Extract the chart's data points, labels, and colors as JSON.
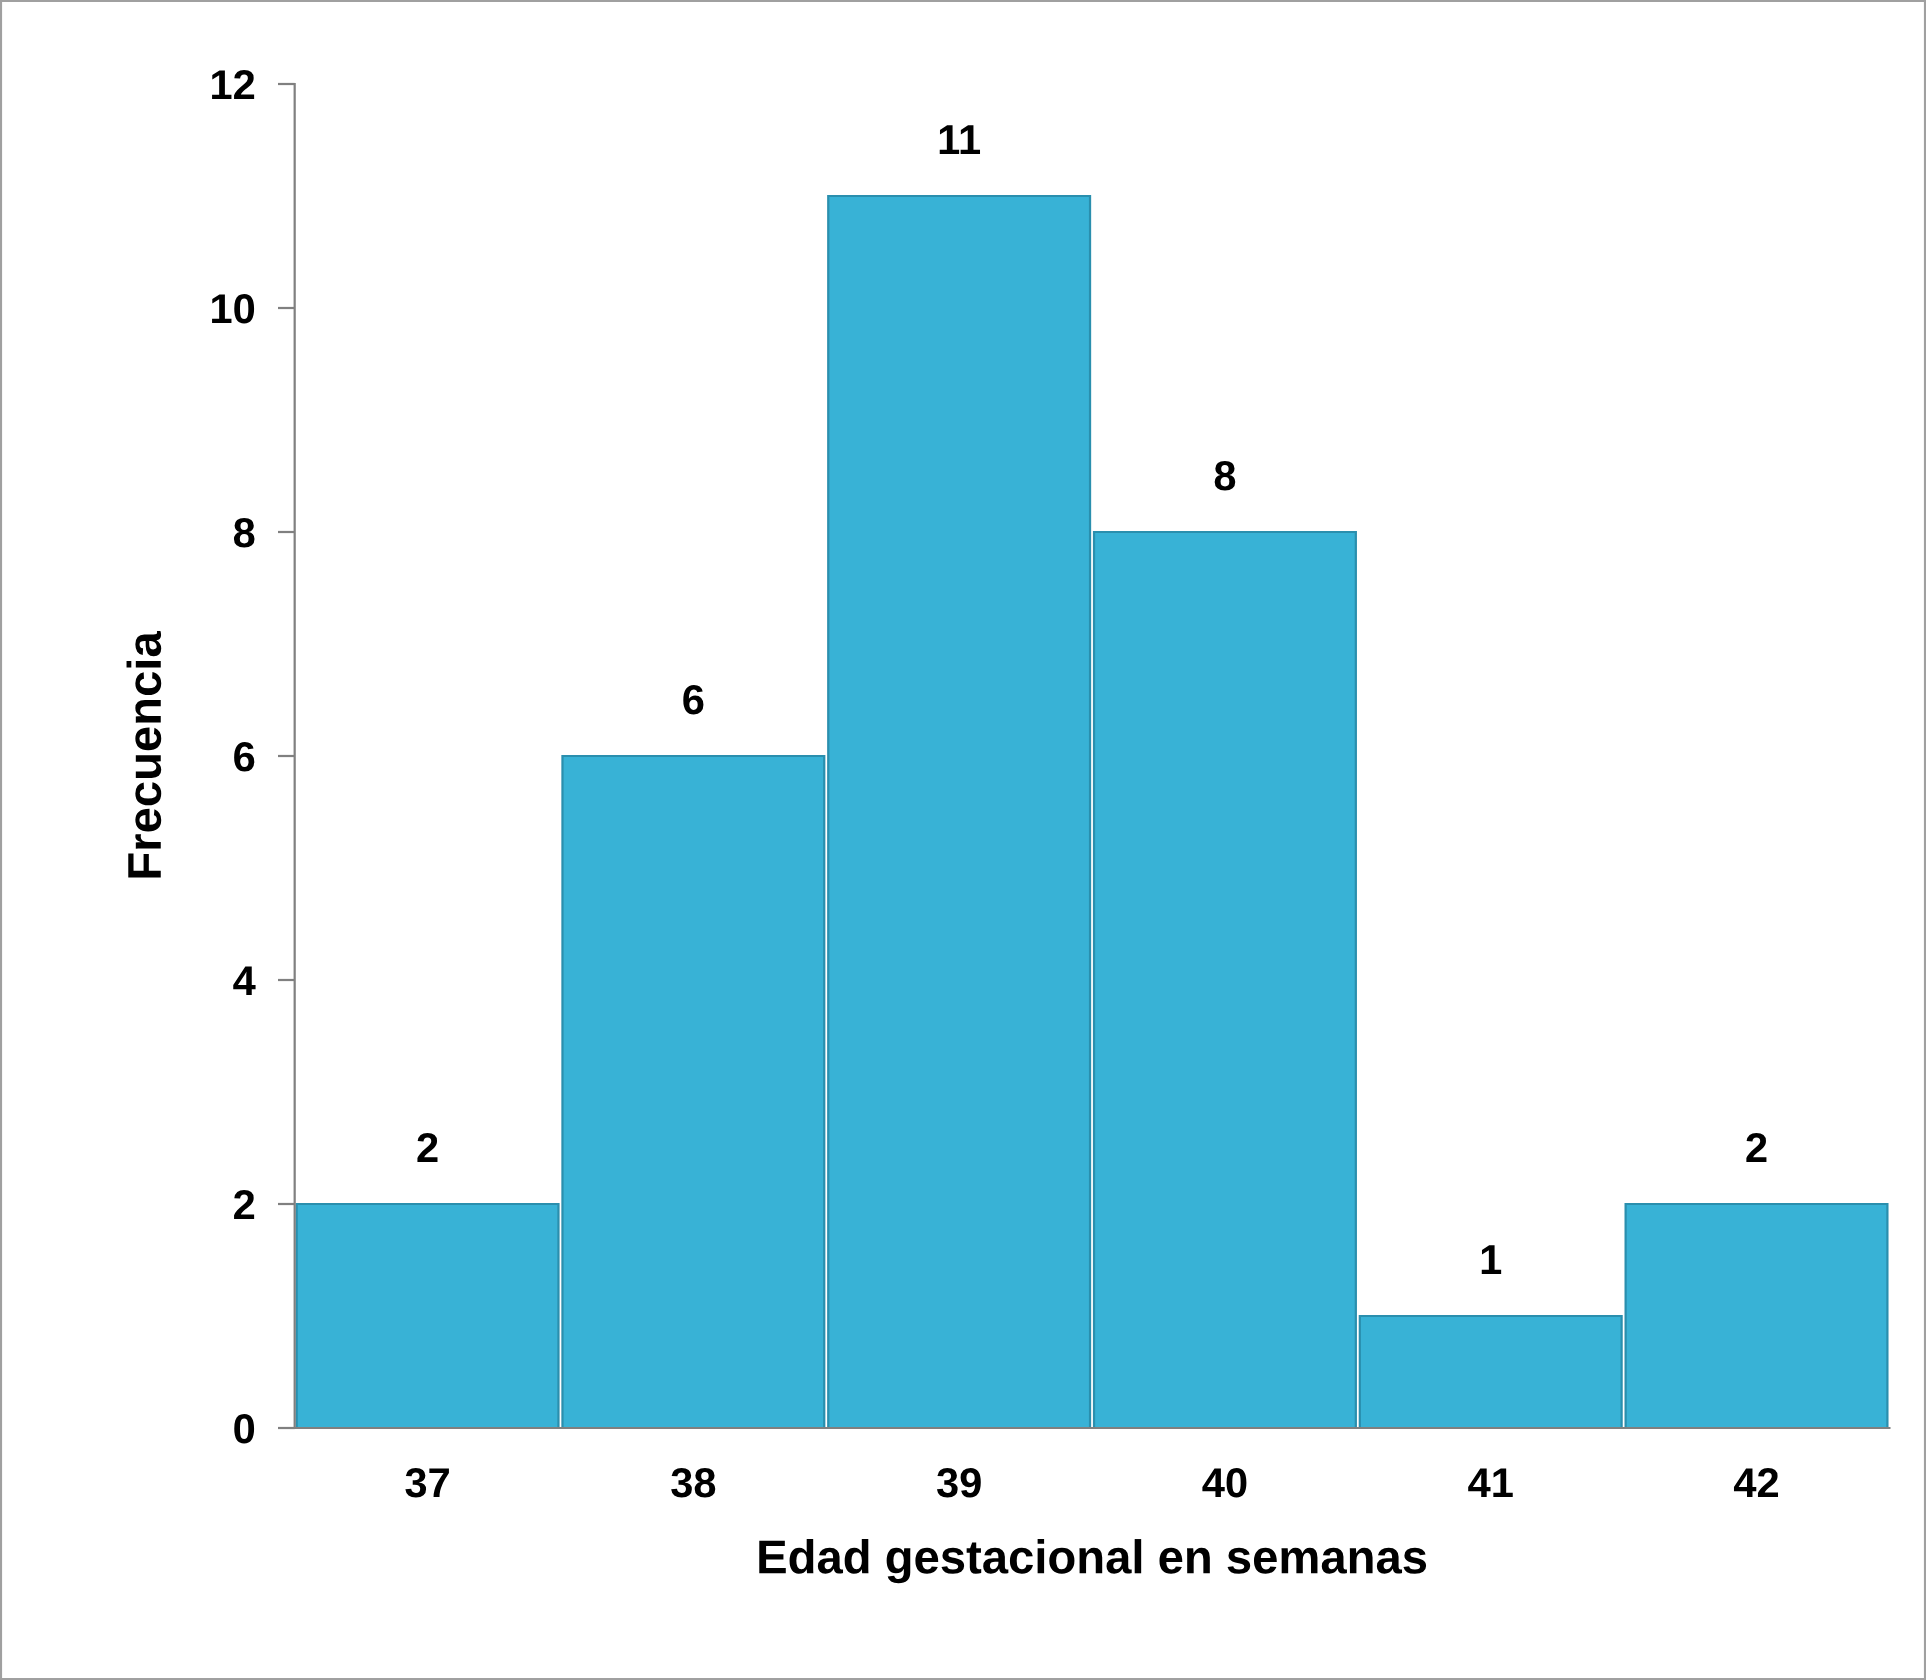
{
  "chart_data": {
    "type": "bar",
    "xlabel": "Edad gestacional en semanas",
    "ylabel": "Frecuencia",
    "categories": [
      "37",
      "38",
      "39",
      "40",
      "41",
      "42"
    ],
    "values": [
      2,
      6,
      11,
      8,
      1,
      2
    ],
    "color": "#38b2d6",
    "ylim": [
      0,
      12
    ],
    "yticks": [
      0,
      2,
      4,
      6,
      8,
      10,
      12
    ],
    "data_labels": true
  }
}
